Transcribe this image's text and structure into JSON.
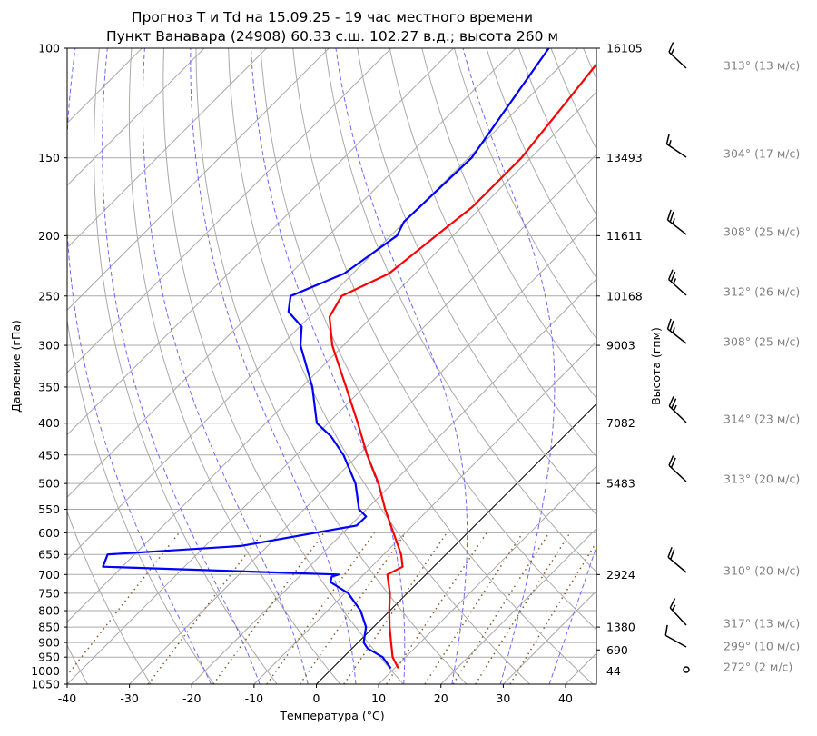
{
  "chart_data": {
    "type": "line",
    "subtype": "skew-t log-p",
    "title": [
      "Прогноз T и Td на 15.09.25 - 19 час местного времени",
      "Пункт Ванавара (24908) 60.33 с.ш. 102.27 в.д.; высота 260 м"
    ],
    "xlabel": "Температура (°C)",
    "ylabel": "Давление (гПа)",
    "ylabel_right": "Высота (гпм)",
    "xlim": [
      -40,
      45
    ],
    "ylim": [
      1050,
      100
    ],
    "xticks": [
      "-40",
      "-30",
      "-20",
      "-10",
      "0",
      "10",
      "20",
      "30",
      "40"
    ],
    "xtick_values": [
      -40,
      -30,
      -20,
      -10,
      0,
      10,
      20,
      30,
      40
    ],
    "yticks": [
      100,
      150,
      200,
      250,
      300,
      350,
      400,
      450,
      500,
      550,
      600,
      650,
      700,
      750,
      800,
      850,
      900,
      950,
      1000,
      1050
    ],
    "height_ticks": [
      {
        "p": 100,
        "label": "16105"
      },
      {
        "p": 150,
        "label": "13493"
      },
      {
        "p": 200,
        "label": "11611"
      },
      {
        "p": 250,
        "label": "10168"
      },
      {
        "p": 300,
        "label": "9003"
      },
      {
        "p": 400,
        "label": "7082"
      },
      {
        "p": 500,
        "label": "5483"
      },
      {
        "p": 700,
        "label": "2924"
      },
      {
        "p": 850,
        "label": "1380"
      },
      {
        "p": 925,
        "label": "690"
      },
      {
        "p": 1000,
        "label": "44"
      }
    ],
    "series": [
      {
        "name": "T",
        "color": "#ff0000",
        "p": [
          990,
          950,
          900,
          850,
          800,
          750,
          700,
          680,
          650,
          600,
          550,
          500,
          450,
          400,
          350,
          300,
          270,
          250,
          230,
          200,
          180,
          150,
          120,
          100
        ],
        "t": [
          10.6,
          7.9,
          5.3,
          2.6,
          -0.1,
          -2.8,
          -6.2,
          -5.0,
          -7.2,
          -11.9,
          -17.0,
          -22.2,
          -28.6,
          -35.2,
          -42.9,
          -51.8,
          -56.8,
          -58.2,
          -54.2,
          -52.7,
          -51.5,
          -51.5,
          -53.4,
          -55.0
        ]
      },
      {
        "name": "Td",
        "color": "#0000ff",
        "p": [
          990,
          950,
          920,
          900,
          850,
          800,
          750,
          720,
          705,
          700,
          680,
          650,
          630,
          584,
          565,
          550,
          500,
          450,
          420,
          400,
          370,
          350,
          300,
          280,
          265,
          250,
          230,
          200,
          190,
          150,
          100
        ],
        "t": [
          9.4,
          6.3,
          2.5,
          0.9,
          -1.2,
          -4.7,
          -9.5,
          -14.1,
          -14.8,
          -14.0,
          -53.1,
          -54.3,
          -34.3,
          -19.0,
          -18.9,
          -21.2,
          -25.9,
          -32.4,
          -37.4,
          -41.8,
          -45.6,
          -48.3,
          -56.9,
          -59.7,
          -64.2,
          -66.4,
          -61.4,
          -59.0,
          -60.1,
          -59.5,
          -64.7
        ]
      }
    ],
    "wind": [
      {
        "dir": 313,
        "speed": 13,
        "label": "313° (13 м/с)"
      },
      {
        "dir": 304,
        "speed": 17,
        "label": "304° (17 м/с)"
      },
      {
        "dir": 308,
        "speed": 25,
        "label": "308° (25 м/с)"
      },
      {
        "dir": 312,
        "speed": 26,
        "label": "312° (26 м/с)"
      },
      {
        "dir": 308,
        "speed": 25,
        "label": "308° (25 м/с)"
      },
      {
        "dir": 314,
        "speed": 23,
        "label": "314° (23 м/с)"
      },
      {
        "dir": 313,
        "speed": 20,
        "label": "313° (20 м/с)"
      },
      {
        "dir": 310,
        "speed": 20,
        "label": "310° (20 м/с)"
      },
      {
        "dir": 317,
        "speed": 13,
        "label": "317° (13 м/с)"
      },
      {
        "dir": 299,
        "speed": 10,
        "label": "299° (10 м/с)"
      },
      {
        "dir": 272,
        "speed": 2,
        "label": "272° (2 м/с)"
      }
    ]
  }
}
